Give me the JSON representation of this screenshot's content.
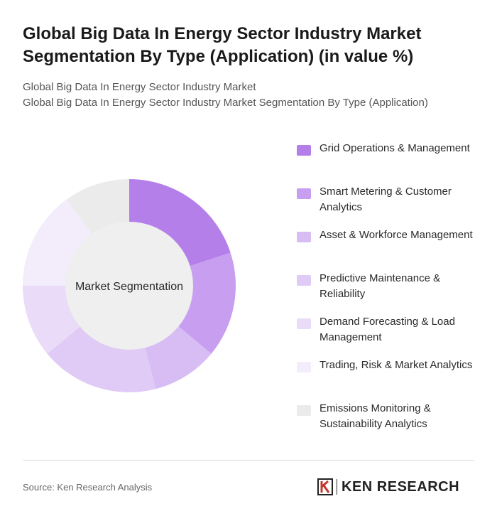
{
  "title": "Global Big Data In Energy Sector Industry Market Segmentation By Type (Application) (in value %)",
  "subtitle_lines": [
    "Global Big Data In Energy Sector Industry Market",
    "Global Big Data In Energy Sector Industry Market Segmentation By Type (Application)"
  ],
  "chart_data": {
    "type": "pie",
    "variant": "donut",
    "center_label": "Market Segmentation",
    "slices": [
      {
        "label": "Grid Operations & Management",
        "value": 20,
        "color": "#b57fea"
      },
      {
        "label": "Smart Metering & Customer Analytics",
        "value": 16,
        "color": "#c79ef0"
      },
      {
        "label": "Asset & Workforce Management",
        "value": 10,
        "color": "#d8bdf5"
      },
      {
        "label": "Predictive Maintenance & Reliability",
        "value": 18,
        "color": "#e0cbf6"
      },
      {
        "label": "Demand Forecasting & Load Management",
        "value": 11,
        "color": "#eadcf9"
      },
      {
        "label": "Trading, Risk & Market Analytics",
        "value": 15,
        "color": "#f2ecfb"
      },
      {
        "label": "Emissions Monitoring & Sustainability Analytics",
        "value": 10,
        "color": "#ebebeb"
      }
    ],
    "legend_position": "right"
  },
  "footer": {
    "source": "Source: Ken Research Analysis",
    "logo_text": "KEN RESEARCH"
  }
}
